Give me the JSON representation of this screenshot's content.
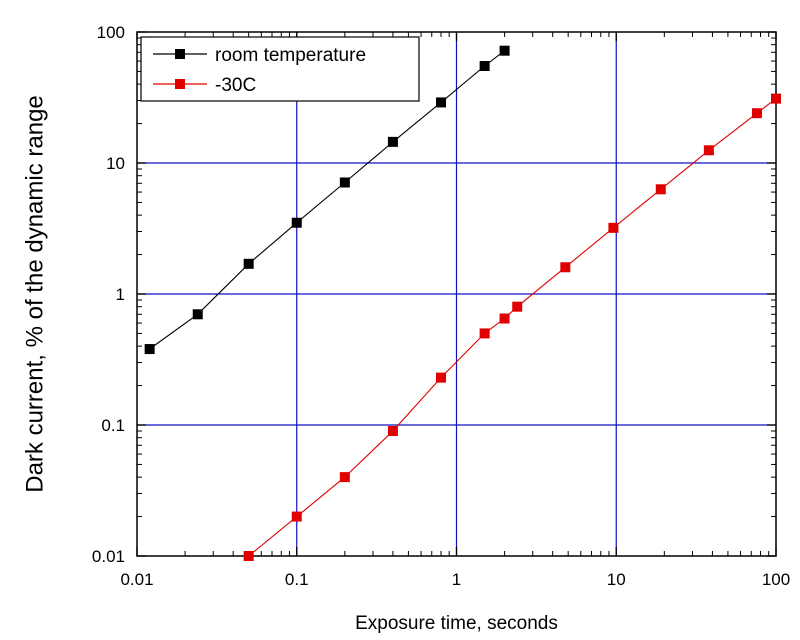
{
  "chart_data": {
    "type": "line",
    "title": "",
    "xlabel": "Exposure time, seconds",
    "ylabel": "Dark current, % of the dynamic range",
    "x_scale": "log",
    "y_scale": "log",
    "xlim": [
      0.01,
      100
    ],
    "ylim": [
      0.01,
      100
    ],
    "grid": "major",
    "grid_color": "#1010c0",
    "legend_position": "top-left",
    "x_ticks": [
      {
        "value": 0.01,
        "label": "0.01"
      },
      {
        "value": 0.1,
        "label": "0.1"
      },
      {
        "value": 1,
        "label": "1"
      },
      {
        "value": 10,
        "label": "10"
      },
      {
        "value": 100,
        "label": "100"
      }
    ],
    "y_ticks": [
      {
        "value": 0.01,
        "label": "0.01"
      },
      {
        "value": 0.1,
        "label": "0.1"
      },
      {
        "value": 1,
        "label": "1"
      },
      {
        "value": 10,
        "label": "10"
      },
      {
        "value": 100,
        "label": "100"
      }
    ],
    "series": [
      {
        "name": "room temperature",
        "color": "#000000",
        "marker": "square",
        "x": [
          0.012,
          0.024,
          0.05,
          0.1,
          0.2,
          0.4,
          0.8,
          1.5,
          2.0
        ],
        "y": [
          0.38,
          0.7,
          1.7,
          3.5,
          7.1,
          14.5,
          29,
          55,
          72
        ]
      },
      {
        "name": "-30C",
        "color": "#e00000",
        "marker": "square",
        "x": [
          0.05,
          0.1,
          0.2,
          0.4,
          0.8,
          1.5,
          2.0,
          2.4,
          4.8,
          9.6,
          19,
          38,
          76,
          100
        ],
        "y": [
          0.01,
          0.02,
          0.04,
          0.09,
          0.23,
          0.5,
          0.65,
          0.8,
          1.6,
          3.2,
          6.3,
          12.5,
          24,
          31
        ]
      }
    ]
  }
}
